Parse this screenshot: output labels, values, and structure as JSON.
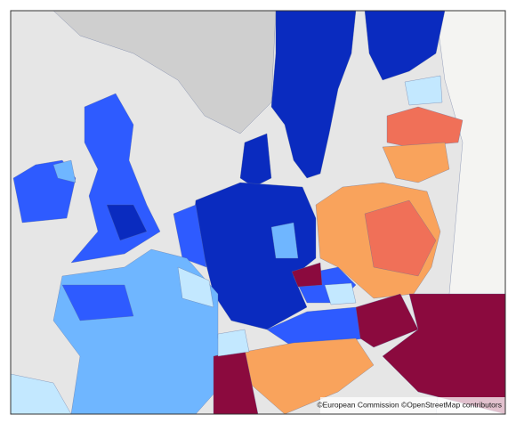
{
  "attribution": "©European Commission ©OpenStreetMap contributors"
}
